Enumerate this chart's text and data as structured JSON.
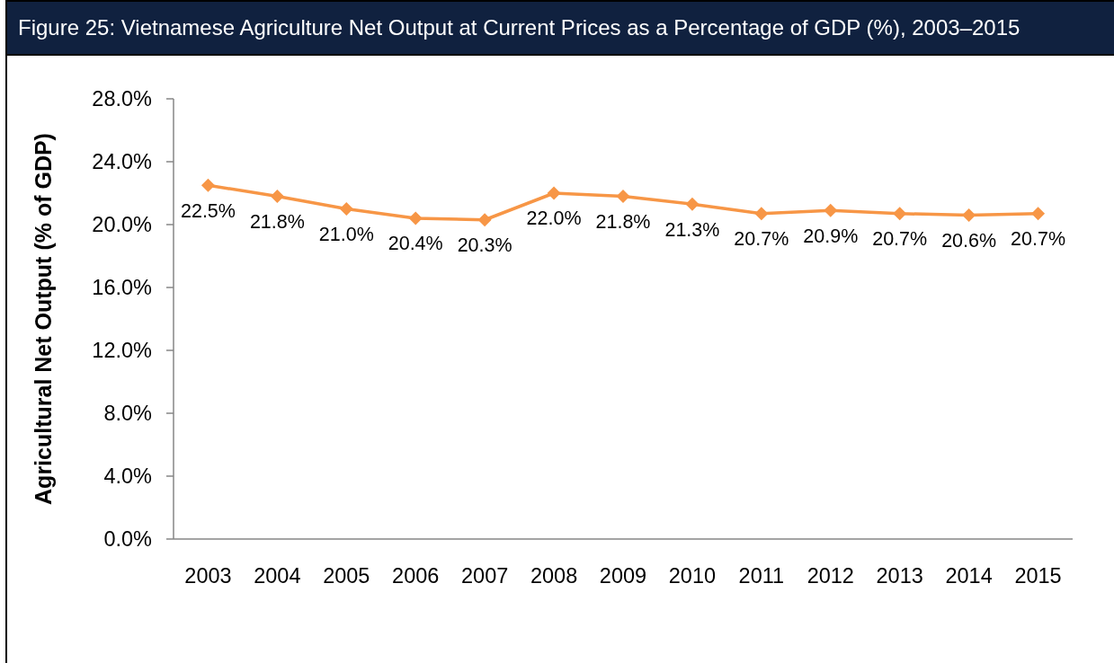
{
  "chart_data": {
    "type": "line",
    "title": "Figure 25: Vietnamese Agriculture Net Output at Current Prices as a Percentage of GDP (%), 2003–2015",
    "ylabel": "Agricultural Net Output (% of GDP)",
    "categories": [
      "2003",
      "2004",
      "2005",
      "2006",
      "2007",
      "2008",
      "2009",
      "2010",
      "2011",
      "2012",
      "2013",
      "2014",
      "2015"
    ],
    "values": [
      22.5,
      21.8,
      21.0,
      20.4,
      20.3,
      22.0,
      21.8,
      21.3,
      20.7,
      20.9,
      20.7,
      20.6,
      20.7
    ],
    "value_labels": [
      "22.5%",
      "21.8%",
      "21.0%",
      "20.4%",
      "20.3%",
      "22.0%",
      "21.8%",
      "21.3%",
      "20.7%",
      "20.9%",
      "20.7%",
      "20.6%",
      "20.7%"
    ],
    "color": "#f79646",
    "marker": "diamond",
    "line_style": "solid",
    "ylim": [
      0,
      28
    ],
    "yticks": [
      {
        "value": 0,
        "label": "0.0%"
      },
      {
        "value": 4,
        "label": "4.0%"
      },
      {
        "value": 8,
        "label": "8.0%"
      },
      {
        "value": 12,
        "label": "12.0%"
      },
      {
        "value": 16,
        "label": "16.0%"
      },
      {
        "value": 20,
        "label": "20.0%"
      },
      {
        "value": 24,
        "label": "24.0%"
      },
      {
        "value": 28,
        "label": "28.0%"
      }
    ]
  }
}
